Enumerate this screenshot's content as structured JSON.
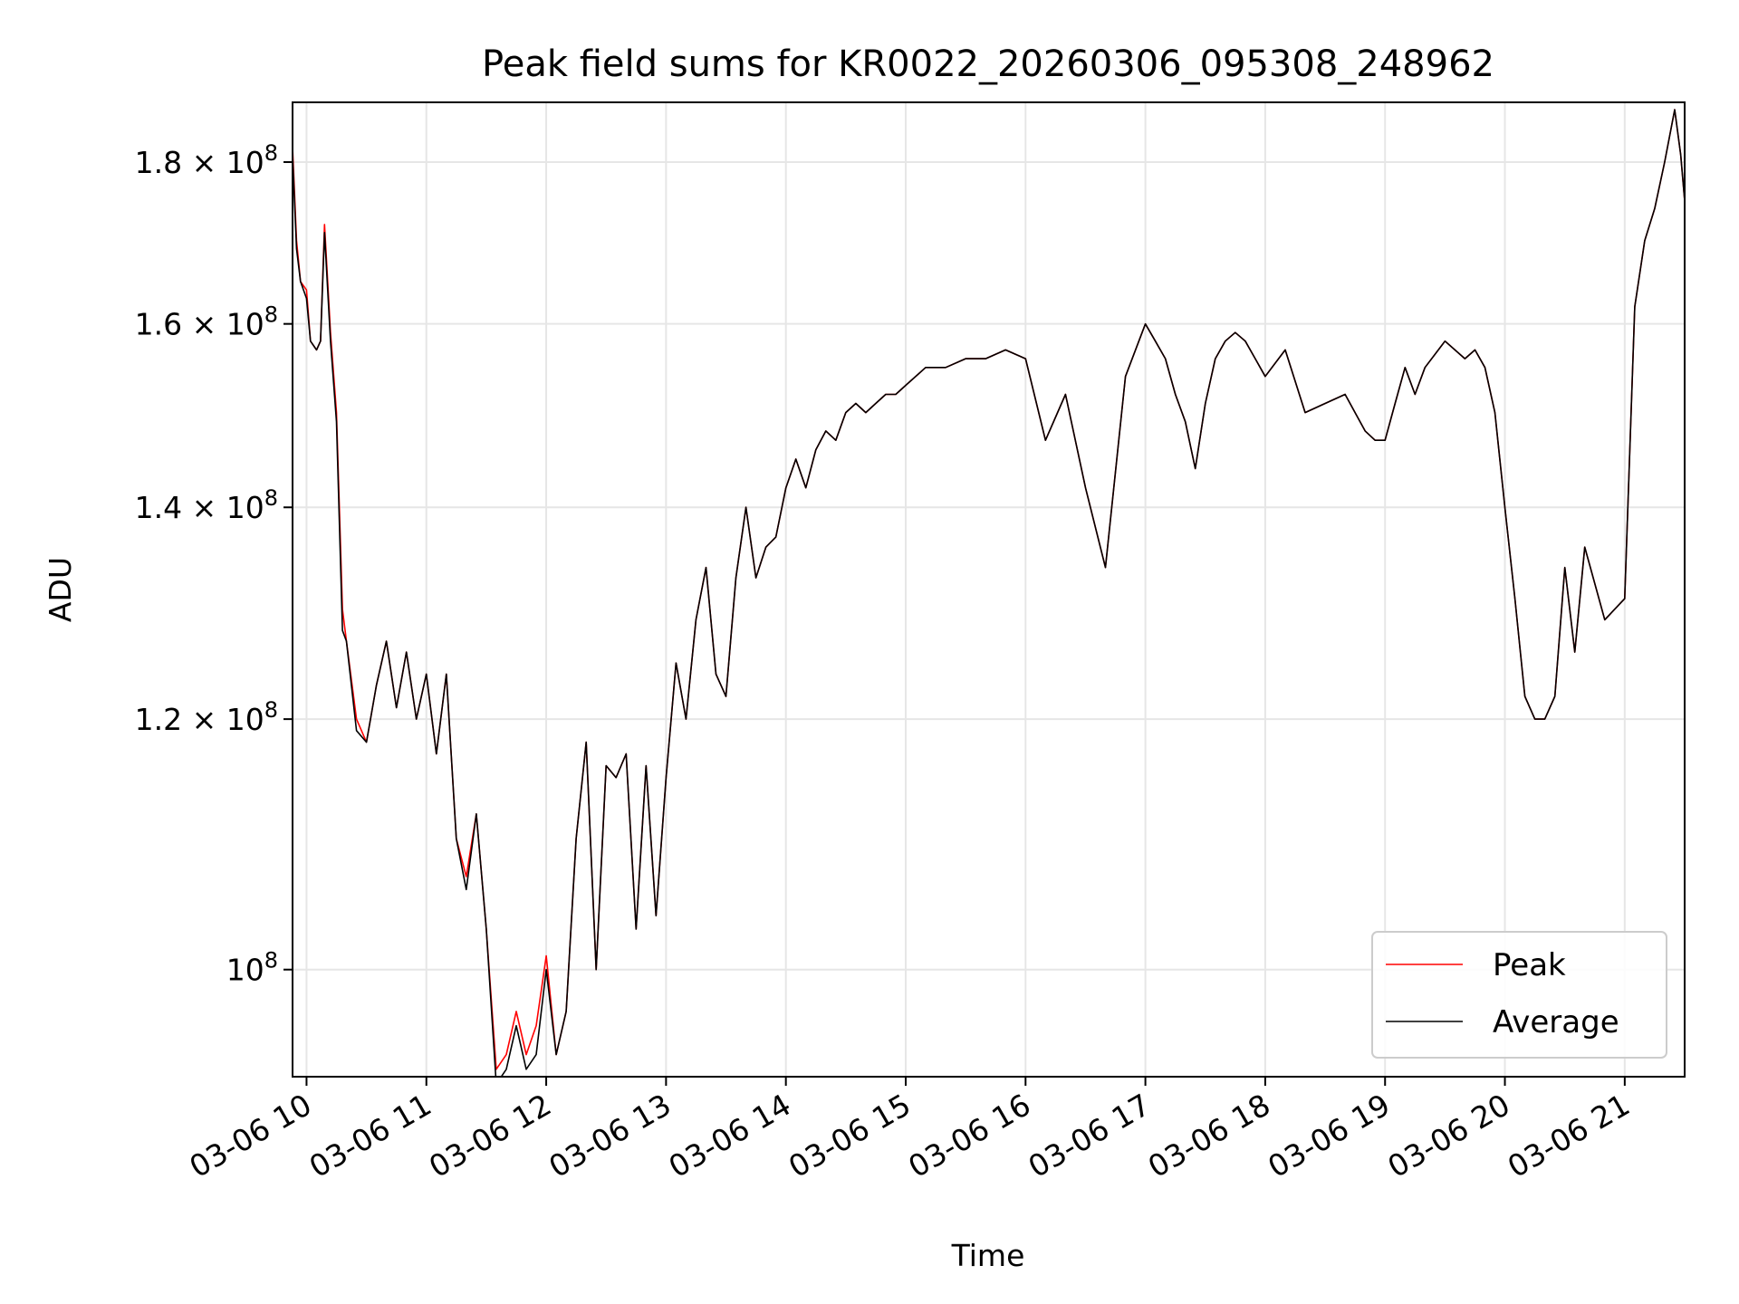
{
  "chart_data": {
    "type": "line",
    "title": "Peak field sums for KR0022_20260306_095308_248962",
    "xlabel": "Time",
    "ylabel": "ADU",
    "yscale": "log",
    "grid": true,
    "legend_position": "lower-right",
    "xlim": [
      "03-06 09:53",
      "03-06 21:30"
    ],
    "ylim": [
      92500000,
      188000000
    ],
    "x_ticks": [
      "03-06 10",
      "03-06 11",
      "03-06 12",
      "03-06 13",
      "03-06 14",
      "03-06 15",
      "03-06 16",
      "03-06 17",
      "03-06 18",
      "03-06 19",
      "03-06 20",
      "03-06 21"
    ],
    "y_ticks": [
      {
        "value": 100000000,
        "mantissa": "",
        "exp": "8",
        "base": "10"
      },
      {
        "value": 120000000,
        "mantissa": "1.2",
        "exp": "8",
        "base": "10"
      },
      {
        "value": 140000000,
        "mantissa": "1.4",
        "exp": "8",
        "base": "10"
      },
      {
        "value": 160000000,
        "mantissa": "1.6",
        "exp": "8",
        "base": "10"
      },
      {
        "value": 180000000,
        "mantissa": "1.8",
        "exp": "8",
        "base": "10"
      }
    ],
    "x": [
      "09:53",
      "09:55",
      "09:57",
      "10:00",
      "10:02",
      "10:05",
      "10:07",
      "10:09",
      "10:12",
      "10:15",
      "10:18",
      "10:20",
      "10:25",
      "10:30",
      "10:35",
      "10:40",
      "10:45",
      "10:50",
      "10:55",
      "11:00",
      "11:05",
      "11:10",
      "11:15",
      "11:20",
      "11:25",
      "11:30",
      "11:35",
      "11:40",
      "11:45",
      "11:50",
      "11:55",
      "12:00",
      "12:05",
      "12:10",
      "12:15",
      "12:20",
      "12:25",
      "12:30",
      "12:35",
      "12:40",
      "12:45",
      "12:50",
      "12:55",
      "13:00",
      "13:05",
      "13:10",
      "13:15",
      "13:20",
      "13:25",
      "13:30",
      "13:35",
      "13:40",
      "13:45",
      "13:50",
      "13:55",
      "14:00",
      "14:05",
      "14:10",
      "14:15",
      "14:20",
      "14:25",
      "14:30",
      "14:35",
      "14:40",
      "14:45",
      "14:50",
      "14:55",
      "15:00",
      "15:10",
      "15:20",
      "15:30",
      "15:40",
      "15:50",
      "16:00",
      "16:10",
      "16:20",
      "16:30",
      "16:40",
      "16:50",
      "17:00",
      "17:05",
      "17:10",
      "17:15",
      "17:20",
      "17:25",
      "17:30",
      "17:35",
      "17:40",
      "17:45",
      "17:50",
      "17:55",
      "18:00",
      "18:10",
      "18:20",
      "18:30",
      "18:40",
      "18:45",
      "18:50",
      "18:55",
      "19:00",
      "19:05",
      "19:10",
      "19:15",
      "19:20",
      "19:30",
      "19:40",
      "19:45",
      "19:50",
      "19:55",
      "20:00",
      "20:05",
      "20:10",
      "20:15",
      "20:20",
      "20:25",
      "20:30",
      "20:35",
      "20:40",
      "20:50",
      "21:00",
      "21:05",
      "21:10",
      "21:15",
      "21:20",
      "21:25",
      "21:28",
      "21:30"
    ],
    "series": [
      {
        "name": "Peak",
        "color": "#ff0000",
        "values": [
          182,
          170,
          165,
          164,
          158,
          157,
          158,
          172,
          159,
          150,
          130,
          127,
          120,
          118,
          123,
          127,
          121,
          126,
          120,
          124,
          117,
          124,
          110,
          107,
          112,
          103,
          93,
          94,
          97,
          94,
          96,
          101,
          94,
          97,
          110,
          118,
          100,
          116,
          115,
          117,
          103,
          116,
          104,
          115,
          125,
          120,
          129,
          134,
          124,
          122,
          133,
          140,
          133,
          136,
          137,
          142,
          145,
          142,
          146,
          148,
          147,
          150,
          151,
          150,
          151,
          152,
          152,
          153,
          155,
          155,
          156,
          156,
          157,
          156,
          147,
          152,
          142,
          134,
          154,
          160,
          158,
          156,
          152,
          149,
          144,
          151,
          156,
          158,
          159,
          158,
          156,
          154,
          157,
          150,
          151,
          152,
          150,
          148,
          147,
          147,
          151,
          155,
          152,
          155,
          158,
          156,
          157,
          155,
          150,
          140,
          131,
          122,
          120,
          120,
          122,
          134,
          126,
          136,
          129,
          131,
          162,
          170,
          174,
          180,
          187,
          181,
          175
        ]
      },
      {
        "name": "Average",
        "color": "#000000",
        "values": [
          181,
          169,
          165,
          163,
          158,
          157,
          158,
          171,
          158,
          149,
          128,
          127,
          119,
          118,
          123,
          127,
          121,
          126,
          120,
          124,
          117,
          124,
          110,
          106,
          112,
          103,
          92,
          93,
          96,
          93,
          94,
          100,
          94,
          97,
          110,
          118,
          100,
          116,
          115,
          117,
          103,
          116,
          104,
          115,
          125,
          120,
          129,
          134,
          124,
          122,
          133,
          140,
          133,
          136,
          137,
          142,
          145,
          142,
          146,
          148,
          147,
          150,
          151,
          150,
          151,
          152,
          152,
          153,
          155,
          155,
          156,
          156,
          157,
          156,
          147,
          152,
          142,
          134,
          154,
          160,
          158,
          156,
          152,
          149,
          144,
          151,
          156,
          158,
          159,
          158,
          156,
          154,
          157,
          150,
          151,
          152,
          150,
          148,
          147,
          147,
          151,
          155,
          152,
          155,
          158,
          156,
          157,
          155,
          150,
          140,
          131,
          122,
          120,
          120,
          122,
          134,
          126,
          136,
          129,
          131,
          162,
          170,
          174,
          180,
          187,
          181,
          175
        ]
      }
    ],
    "value_unit_multiplier": 1000000
  }
}
